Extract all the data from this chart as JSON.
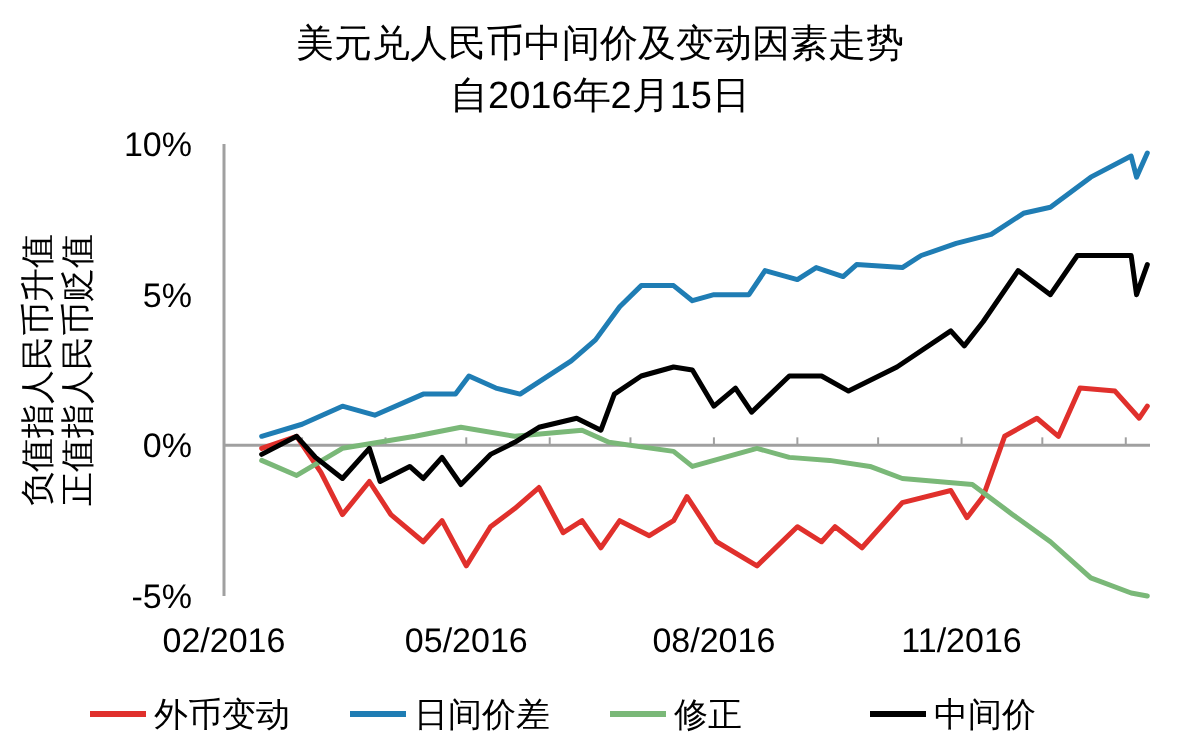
{
  "chart_data": {
    "type": "line",
    "title": "美元兑人民币中间价及变动因素走势",
    "subtitle": "自2016年2月15日",
    "ylabel": [
      "负值指人民币升值",
      "正值指人民币贬值"
    ],
    "xlim": [
      "2016-02-01",
      "2017-01-10"
    ],
    "xticks": [
      {
        "value": "2016-02-01",
        "label": "02/2016"
      },
      {
        "value": "2016-03-01",
        "label": null
      },
      {
        "value": "2016-04-01",
        "label": null
      },
      {
        "value": "2016-05-01",
        "label": "05/2016"
      },
      {
        "value": "2016-06-01",
        "label": null
      },
      {
        "value": "2016-07-01",
        "label": null
      },
      {
        "value": "2016-08-01",
        "label": "08/2016"
      },
      {
        "value": "2016-09-01",
        "label": null
      },
      {
        "value": "2016-10-01",
        "label": null
      },
      {
        "value": "2016-11-01",
        "label": "11/2016"
      },
      {
        "value": "2016-12-01",
        "label": null
      },
      {
        "value": "2017-01-01",
        "label": null
      }
    ],
    "ylim": [
      -5,
      10
    ],
    "yticks": [
      {
        "value": -5,
        "label": "-5%"
      },
      {
        "value": 0,
        "label": "0%"
      },
      {
        "value": 5,
        "label": "5%"
      },
      {
        "value": 10,
        "label": "10%"
      }
    ],
    "legend": "bottom",
    "series": [
      {
        "name": "外币变动",
        "color": "#e0302c",
        "x": [
          "2016-02-15",
          "2016-02-28",
          "2016-03-08",
          "2016-03-16",
          "2016-03-26",
          "2016-04-03",
          "2016-04-15",
          "2016-04-22",
          "2016-05-01",
          "2016-05-10",
          "2016-05-19",
          "2016-05-28",
          "2016-06-06",
          "2016-06-13",
          "2016-06-20",
          "2016-06-27",
          "2016-07-08",
          "2016-07-17",
          "2016-07-22",
          "2016-08-02",
          "2016-08-17",
          "2016-09-01",
          "2016-09-10",
          "2016-09-15",
          "2016-09-25",
          "2016-10-10",
          "2016-10-28",
          "2016-11-03",
          "2016-11-09",
          "2016-11-17",
          "2016-11-29",
          "2016-12-07",
          "2016-12-15",
          "2016-12-28",
          "2017-01-06",
          "2017-01-09"
        ],
        "values": [
          -0.1,
          0.3,
          -0.9,
          -2.3,
          -1.2,
          -2.3,
          -3.2,
          -2.5,
          -4.0,
          -2.7,
          -2.1,
          -1.4,
          -2.9,
          -2.5,
          -3.4,
          -2.5,
          -3.0,
          -2.5,
          -1.7,
          -3.2,
          -4.0,
          -2.7,
          -3.2,
          -2.7,
          -3.4,
          -1.9,
          -1.5,
          -2.4,
          -1.7,
          0.3,
          0.9,
          0.3,
          1.9,
          1.8,
          0.9,
          1.3
        ]
      },
      {
        "name": "日间价差",
        "color": "#1f7db4",
        "x": [
          "2016-02-15",
          "2016-03-01",
          "2016-03-16",
          "2016-03-28",
          "2016-04-15",
          "2016-04-27",
          "2016-05-02",
          "2016-05-12",
          "2016-05-21",
          "2016-06-09",
          "2016-06-18",
          "2016-06-27",
          "2016-07-05",
          "2016-07-17",
          "2016-07-24",
          "2016-08-01",
          "2016-08-14",
          "2016-08-20",
          "2016-09-01",
          "2016-09-08",
          "2016-09-18",
          "2016-09-23",
          "2016-10-10",
          "2016-10-17",
          "2016-10-30",
          "2016-11-12",
          "2016-11-24",
          "2016-12-04",
          "2016-12-19",
          "2017-01-03",
          "2017-01-05",
          "2017-01-09"
        ],
        "values": [
          0.3,
          0.7,
          1.3,
          1.0,
          1.7,
          1.7,
          2.3,
          1.9,
          1.7,
          2.8,
          3.5,
          4.6,
          5.3,
          5.3,
          4.8,
          5.0,
          5.0,
          5.8,
          5.5,
          5.9,
          5.6,
          6.0,
          5.9,
          6.3,
          6.7,
          7.0,
          7.7,
          7.9,
          8.9,
          9.6,
          8.9,
          9.7
        ]
      },
      {
        "name": "修正",
        "color": "#7ab878",
        "x": [
          "2016-02-15",
          "2016-02-28",
          "2016-03-16",
          "2016-04-12",
          "2016-04-29",
          "2016-05-19",
          "2016-06-13",
          "2016-06-23",
          "2016-07-17",
          "2016-07-24",
          "2016-08-17",
          "2016-08-29",
          "2016-09-13",
          "2016-09-28",
          "2016-10-10",
          "2016-11-05",
          "2016-11-20",
          "2016-12-04",
          "2016-12-19",
          "2017-01-03",
          "2017-01-09"
        ],
        "values": [
          -0.5,
          -1.0,
          -0.1,
          0.3,
          0.6,
          0.3,
          0.5,
          0.1,
          -0.2,
          -0.7,
          -0.1,
          -0.4,
          -0.5,
          -0.7,
          -1.1,
          -1.3,
          -2.3,
          -3.2,
          -4.4,
          -4.9,
          -5.0
        ]
      },
      {
        "name": "中间价",
        "color": "#000000",
        "x": [
          "2016-02-15",
          "2016-02-28",
          "2016-03-06",
          "2016-03-16",
          "2016-03-26",
          "2016-03-30",
          "2016-04-10",
          "2016-04-15",
          "2016-04-22",
          "2016-04-29",
          "2016-05-10",
          "2016-05-19",
          "2016-05-28",
          "2016-06-11",
          "2016-06-20",
          "2016-06-25",
          "2016-07-05",
          "2016-07-17",
          "2016-07-24",
          "2016-08-01",
          "2016-08-09",
          "2016-08-15",
          "2016-08-29",
          "2016-09-10",
          "2016-09-20",
          "2016-10-08",
          "2016-10-28",
          "2016-11-02",
          "2016-11-09",
          "2016-11-22",
          "2016-12-04",
          "2016-12-14",
          "2017-01-03",
          "2017-01-05",
          "2017-01-09"
        ],
        "values": [
          -0.3,
          0.3,
          -0.4,
          -1.1,
          -0.1,
          -1.2,
          -0.7,
          -1.1,
          -0.4,
          -1.3,
          -0.3,
          0.1,
          0.6,
          0.9,
          0.5,
          1.7,
          2.3,
          2.6,
          2.5,
          1.3,
          1.9,
          1.1,
          2.3,
          2.3,
          1.8,
          2.6,
          3.8,
          3.3,
          4.1,
          5.8,
          5.0,
          6.3,
          6.3,
          5.0,
          6.0
        ]
      }
    ]
  }
}
